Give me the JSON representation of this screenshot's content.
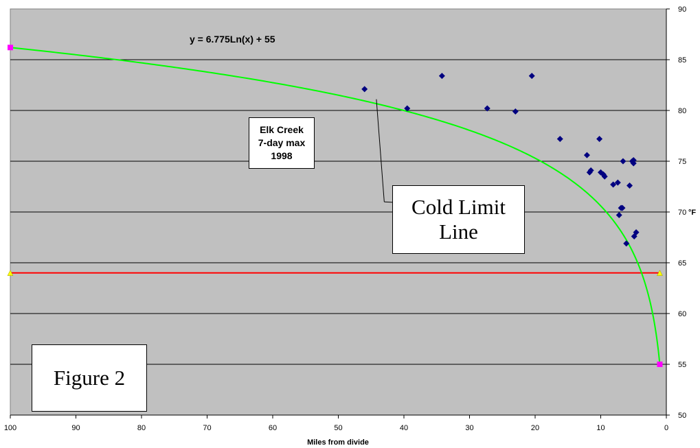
{
  "chart_data": {
    "type": "scatter",
    "xlabel": "Miles from divide",
    "ylabel": "°F",
    "xlim": [
      100,
      0
    ],
    "ylim": [
      50,
      90
    ],
    "x_reversed": true,
    "y_axis_side": "right",
    "x_ticks": [
      100,
      90,
      80,
      70,
      60,
      50,
      40,
      30,
      20,
      10,
      0
    ],
    "y_ticks": [
      50,
      55,
      60,
      65,
      70,
      75,
      80,
      85,
      90
    ],
    "grid": "horizontal",
    "plot_background": "#c0c0c0",
    "points": [
      [
        46,
        82.1
      ],
      [
        39.5,
        80.2
      ],
      [
        34.2,
        83.4
      ],
      [
        27.3,
        80.2
      ],
      [
        23,
        79.9
      ],
      [
        20.5,
        83.4
      ],
      [
        16.2,
        77.2
      ],
      [
        12.1,
        75.6
      ],
      [
        11.7,
        73.9
      ],
      [
        11.5,
        74.1
      ],
      [
        10.2,
        77.2
      ],
      [
        10,
        73.9
      ],
      [
        9.6,
        73.7
      ],
      [
        9.4,
        73.5
      ],
      [
        8.1,
        72.7
      ],
      [
        7.4,
        72.9
      ],
      [
        7.2,
        69.7
      ],
      [
        6.9,
        70.4
      ],
      [
        6.7,
        70.4
      ],
      [
        6.6,
        75
      ],
      [
        6.1,
        66.9
      ],
      [
        5.6,
        72.6
      ],
      [
        5.2,
        75
      ],
      [
        5,
        75.1
      ],
      [
        5,
        74.8
      ],
      [
        4.9,
        67.6
      ],
      [
        4.6,
        68
      ]
    ],
    "point_color": "#000080",
    "curve": {
      "equation": "y = 6.775Ln(x) + 55",
      "a": 6.775,
      "b": 55,
      "x_range": [
        1,
        100
      ],
      "color": "#00ff00",
      "end_markers": [
        [
          100,
          86.2
        ],
        [
          1,
          55
        ]
      ],
      "marker_color": "#ff00ff"
    },
    "hline": {
      "y": 64,
      "x_range": [
        100,
        1
      ],
      "color": "#ff0000",
      "marker_color": "#ffff00"
    },
    "annotations": {
      "elk": [
        "Elk Creek",
        "7-day max",
        "1998"
      ],
      "cold_limit": [
        "Cold Limit",
        "Line"
      ],
      "figure": "Figure 2",
      "leader_from": [
        44.2,
        81.1
      ],
      "leader_to": [
        43,
        71
      ]
    }
  }
}
